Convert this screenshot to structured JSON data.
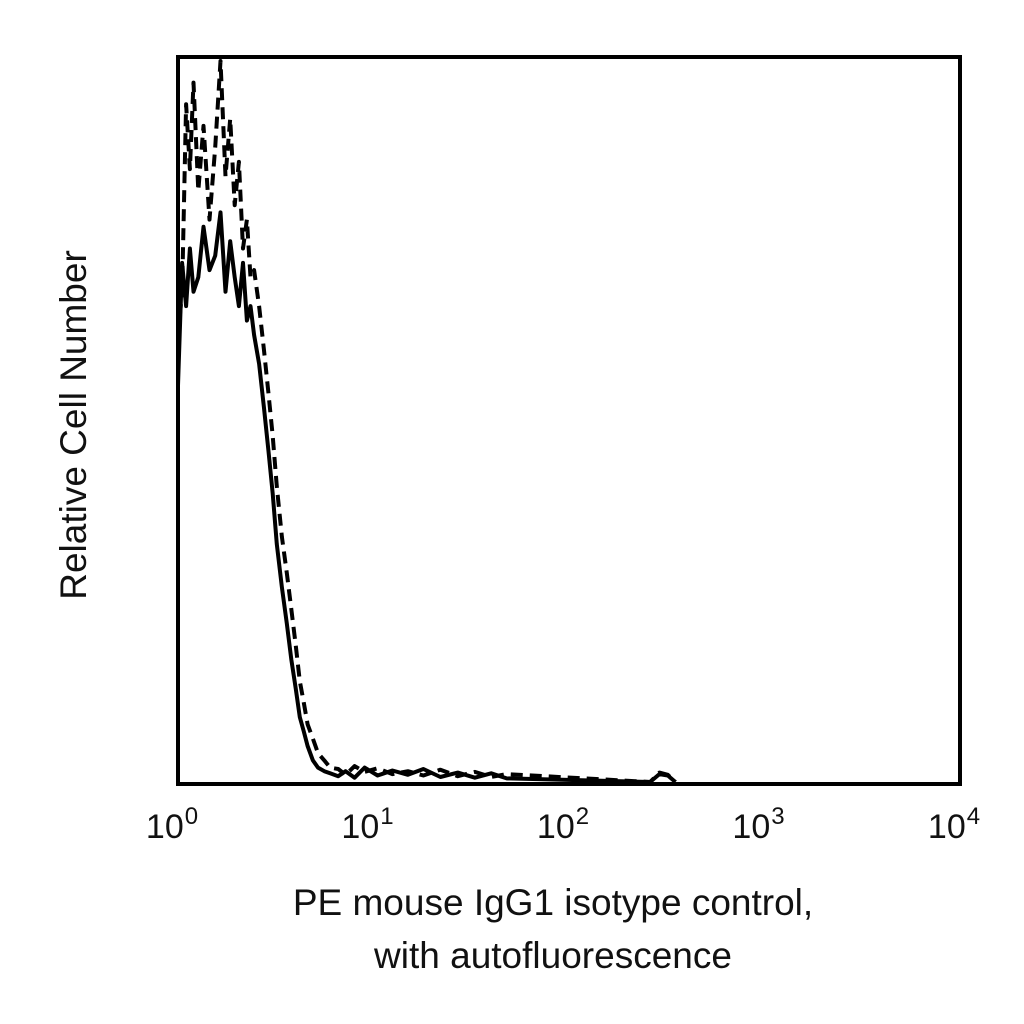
{
  "chart_data": {
    "type": "line",
    "title": "",
    "xlabel_lines": [
      "PE mouse IgG1 isotype control,",
      "with autofluorescence"
    ],
    "ylabel": "Relative Cell Number",
    "x_scale": "log",
    "xlim": [
      1,
      10000
    ],
    "ylim": [
      0,
      100
    ],
    "x_ticks": [
      {
        "base": "10",
        "exp": "0",
        "value": 1
      },
      {
        "base": "10",
        "exp": "1",
        "value": 10
      },
      {
        "base": "10",
        "exp": "2",
        "value": 100
      },
      {
        "base": "10",
        "exp": "3",
        "value": 1000
      },
      {
        "base": "10",
        "exp": "4",
        "value": 10000
      }
    ],
    "grid": false,
    "legend": "none",
    "series": [
      {
        "style": "solid",
        "color": "#000000",
        "x": [
          1.0,
          1.05,
          1.1,
          1.15,
          1.2,
          1.27,
          1.35,
          1.45,
          1.55,
          1.65,
          1.75,
          1.85,
          1.95,
          2.05,
          2.15,
          2.25,
          2.35,
          2.45,
          2.6,
          2.75,
          2.9,
          3.05,
          3.2,
          3.4,
          3.6,
          3.8,
          4.0,
          4.2,
          4.4,
          4.6,
          4.9,
          5.2,
          5.6,
          6.0,
          6.6,
          7.2,
          8.0,
          9.0,
          10.5,
          12.5,
          15.0,
          18.0,
          22.0,
          27.0,
          33.0,
          40.0,
          48.0,
          260.0,
          290.0,
          320.0,
          350.0
        ],
        "y": [
          55,
          72,
          66,
          74,
          68,
          70,
          77,
          71,
          73,
          79,
          68,
          75,
          70,
          66,
          72,
          64,
          66,
          62,
          58,
          52,
          46,
          40,
          33,
          27,
          22,
          17,
          13,
          9,
          7,
          5,
          3,
          2,
          1.5,
          1.2,
          0.8,
          1.5,
          0.6,
          2.0,
          0.9,
          1.6,
          1.0,
          1.8,
          0.7,
          1.3,
          0.6,
          1.2,
          0.5,
          0.0,
          1.1,
          0.9,
          0.0
        ]
      },
      {
        "style": "dashed",
        "color": "#000000",
        "x": [
          1.0,
          1.05,
          1.1,
          1.15,
          1.2,
          1.27,
          1.35,
          1.45,
          1.55,
          1.65,
          1.75,
          1.85,
          1.95,
          2.05,
          2.15,
          2.25,
          2.35,
          2.45,
          2.6,
          2.75,
          2.9,
          3.05,
          3.2,
          3.4,
          3.6,
          3.8,
          4.0,
          4.2,
          4.4,
          4.6,
          4.9,
          5.2,
          5.6,
          6.0,
          6.6,
          7.2,
          8.0,
          9.0,
          10.5,
          12.5,
          15.0,
          18.0,
          22.0,
          27.0,
          33.0,
          40.0,
          48.0,
          260.0,
          290.0,
          320.0,
          350.0
        ],
        "y": [
          62,
          68,
          94,
          85,
          97,
          82,
          91,
          78,
          88,
          100,
          84,
          92,
          80,
          86,
          74,
          78,
          70,
          71,
          66,
          60,
          54,
          48,
          41,
          34,
          29,
          24,
          19,
          14,
          11,
          8,
          6,
          4,
          3,
          2,
          1.8,
          1.0,
          2.2,
          1.4,
          1.9,
          1.1,
          1.5,
          0.9,
          1.7,
          0.8,
          1.4,
          0.7,
          1.1,
          0.0,
          1.3,
          1.0,
          0.0
        ]
      }
    ]
  }
}
